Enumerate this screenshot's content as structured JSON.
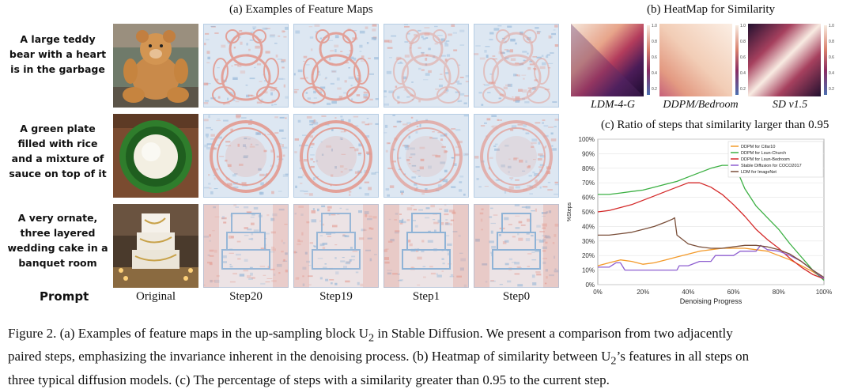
{
  "panel_a": {
    "title": "(a) Examples of Feature Maps",
    "prompts": [
      "A large teddy bear with a heart is in the garbage",
      "A green plate filled with rice and a mixture of sauce on top of it",
      "A very ornate, three layered wedding cake in a banquet room"
    ],
    "prompt_label": "Prompt",
    "columns": [
      "Original",
      "Step20",
      "Step19",
      "Step1",
      "Step0"
    ]
  },
  "panel_b": {
    "title": "(b) HeatMap for Similarity",
    "models": [
      "LDM-4-G",
      "DDPM/Bedroom",
      "SD v1.5"
    ],
    "colorbar_ticks": [
      "1.0",
      "0.8",
      "0.6",
      "0.4",
      "0.2"
    ]
  },
  "panel_c": {
    "title": "(c) Ratio of steps that similarity larger than 0.95"
  },
  "chart_data": {
    "type": "line",
    "title": "(c) Ratio of steps that similarity larger than 0.95",
    "xlabel": "Denoising Progress",
    "ylabel": "%Steps",
    "xlim": [
      0,
      100
    ],
    "ylim": [
      0,
      100
    ],
    "x_ticks": [
      "0%",
      "20%",
      "40%",
      "60%",
      "80%",
      "100%"
    ],
    "y_ticks": [
      "0%",
      "10%",
      "20%",
      "30%",
      "40%",
      "50%",
      "60%",
      "70%",
      "80%",
      "90%",
      "100%"
    ],
    "legend_position": "top-right",
    "series": [
      {
        "name": "DDPM for Cifar10",
        "color": "#f39a2a",
        "x": [
          0,
          5,
          10,
          15,
          20,
          25,
          30,
          35,
          40,
          45,
          50,
          55,
          60,
          65,
          70,
          75,
          80,
          85,
          90,
          95,
          100
        ],
        "y": [
          13,
          15,
          17,
          16,
          14,
          15,
          17,
          19,
          21,
          23,
          24,
          25,
          25,
          25,
          24,
          23,
          20,
          17,
          13,
          9,
          4
        ]
      },
      {
        "name": "DDPM for Lsun-Church",
        "color": "#3cb043",
        "x": [
          0,
          5,
          10,
          15,
          20,
          25,
          30,
          35,
          40,
          45,
          50,
          55,
          58,
          62,
          65,
          70,
          75,
          80,
          85,
          90,
          95,
          100
        ],
        "y": [
          62,
          62,
          63,
          64,
          65,
          67,
          69,
          71,
          74,
          77,
          80,
          82,
          82,
          77,
          66,
          54,
          46,
          38,
          28,
          19,
          10,
          3
        ]
      },
      {
        "name": "DDPM for Lsun-Bedroom",
        "color": "#d42a2a",
        "x": [
          0,
          5,
          10,
          15,
          20,
          25,
          30,
          35,
          40,
          42,
          45,
          50,
          55,
          60,
          65,
          70,
          75,
          80,
          85,
          90,
          95,
          100
        ],
        "y": [
          50,
          51,
          53,
          55,
          58,
          61,
          64,
          67,
          70,
          70,
          70,
          67,
          62,
          55,
          47,
          38,
          31,
          25,
          18,
          12,
          7,
          4
        ]
      },
      {
        "name": "Stable Diffusion for COCO2017",
        "color": "#8e5fd0",
        "x": [
          0,
          5,
          8,
          10,
          12,
          14,
          20,
          25,
          30,
          35,
          36,
          40,
          45,
          50,
          52,
          55,
          60,
          63,
          65,
          70,
          72,
          75,
          80,
          85,
          90,
          95,
          100
        ],
        "y": [
          12,
          12,
          15,
          15,
          10,
          10,
          10,
          10,
          10,
          10,
          13,
          13,
          16,
          16,
          20,
          20,
          20,
          23,
          23,
          23,
          27,
          24,
          23,
          20,
          16,
          10,
          4
        ]
      },
      {
        "name": "LDM for ImageNet",
        "color": "#7a4f3a",
        "x": [
          0,
          5,
          10,
          15,
          20,
          25,
          30,
          33,
          34,
          35,
          40,
          45,
          50,
          55,
          60,
          65,
          70,
          75,
          80,
          85,
          90,
          95,
          100
        ],
        "y": [
          34,
          34,
          35,
          36,
          38,
          40,
          43,
          45,
          46,
          34,
          28,
          26,
          25,
          25,
          26,
          27,
          27,
          26,
          24,
          21,
          16,
          10,
          5
        ]
      }
    ]
  },
  "caption": {
    "line1": "Figure 2. (a) Examples of feature maps in the up-sampling block U",
    "line1_sub": "2",
    "line1_rest": " in Stable Diffusion. We present a comparison from two adjacently",
    "line2": "paired steps, emphasizing the invariance inherent in the denoising process. (b) Heatmap of similarity between U",
    "line2_sub": "2",
    "line2_rest": "’s features in all steps on",
    "line3": "three typical diffusion models. (c) The percentage of steps with a similarity greater than 0.95 to the current step."
  },
  "colors": {
    "feature_blue": "#8fb3d6",
    "feature_red": "#e39a90",
    "heat_dark": "#2a0d3e",
    "heat_mid": "#b33c5c",
    "heat_light": "#f7e6d8"
  }
}
